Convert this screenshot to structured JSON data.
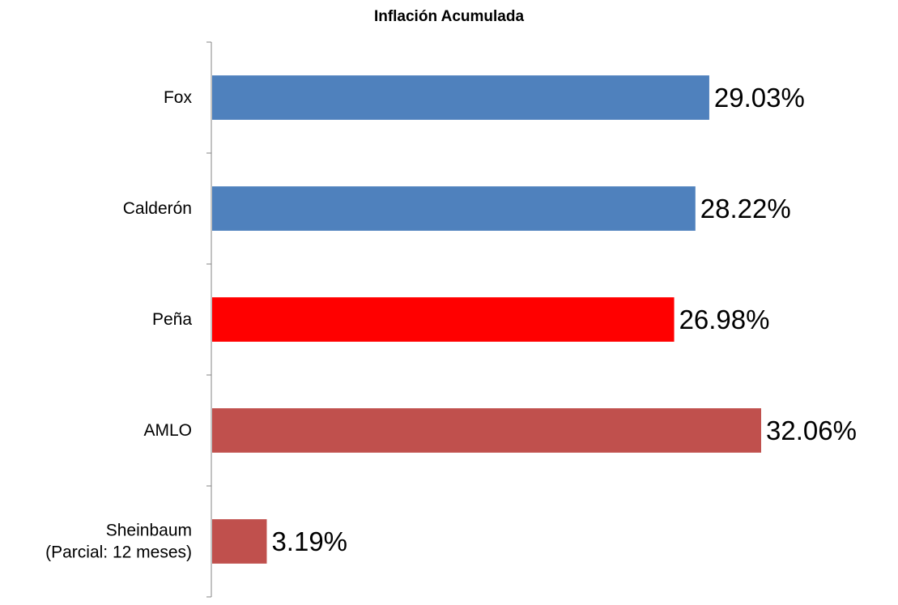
{
  "chart_data": {
    "type": "bar",
    "orientation": "horizontal",
    "title": "Inflación Acumulada",
    "xlabel": "",
    "ylabel": "",
    "xlim": [
      0,
      32.06
    ],
    "grid": false,
    "legend": "none",
    "categories": [
      [
        "Fox"
      ],
      [
        "Calderón"
      ],
      [
        "Peña"
      ],
      [
        "AMLO"
      ],
      [
        "Sheinbaum",
        "(Parcial: 12 meses)"
      ]
    ],
    "values": [
      29.03,
      28.22,
      26.98,
      32.06,
      3.19
    ],
    "data_labels": [
      "29.03%",
      "28.22%",
      "26.98%",
      "32.06%",
      "3.19%"
    ],
    "colors": [
      "#4f81bd",
      "#4f81bd",
      "#ff0000",
      "#c0504d",
      "#c0504d"
    ],
    "axis_color": "#868686"
  }
}
